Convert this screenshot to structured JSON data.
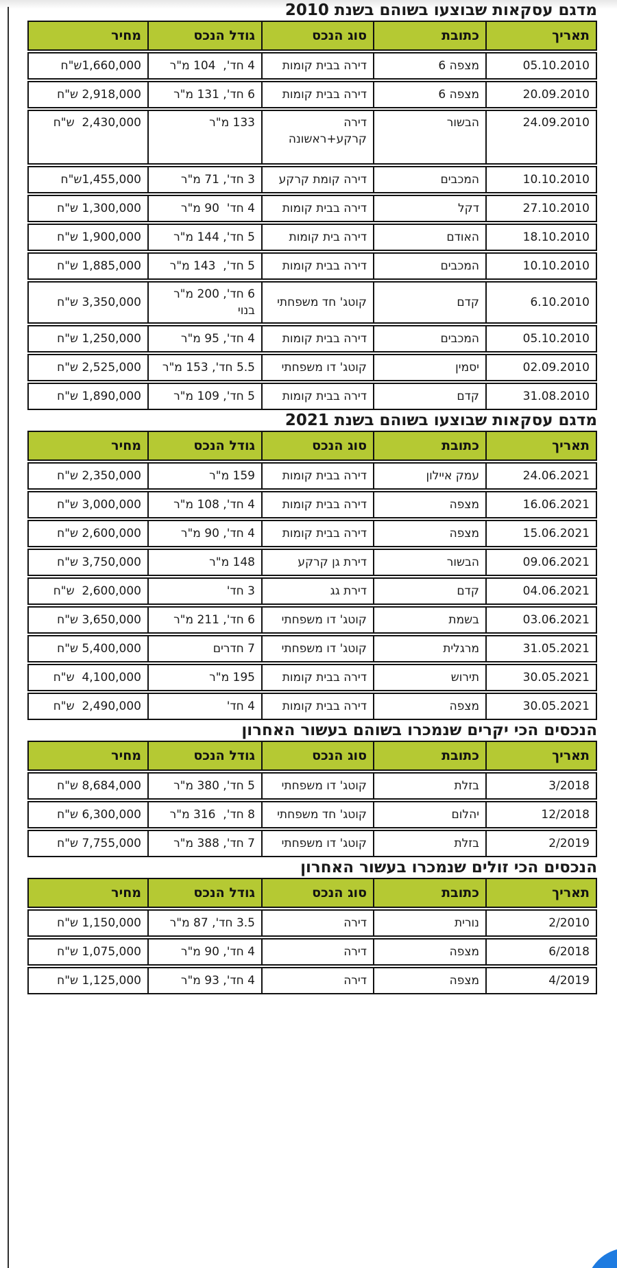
{
  "colors": {
    "header_bg": "#b5c933",
    "border": "#111111",
    "circle_blue": "#1e7be0"
  },
  "tables": [
    {
      "title": "מדגם עסקאות שבוצעו בשוהם בשנת 2010",
      "headers": [
        "תאריך",
        "כתובת",
        "סוג הנכס",
        "גודל הנכס",
        "מחיר"
      ],
      "rows": [
        [
          "05.10.2010",
          "מצפה 6",
          "דירה בבית קומות",
          "4 חד',  104 מ\"ר",
          "1,660,000ש\"ח"
        ],
        [
          "20.09.2010",
          "מצפה 6",
          "דירה בבית קומות",
          "6 חד', 131 מ\"ר",
          "2,918,000 ש\"ח"
        ],
        [
          "24.09.2010",
          "הבשור",
          "דירה\nקרקע+ראשונה",
          "133 מ\"ר",
          "2,430,000  ש\"ח"
        ],
        [
          "10.10.2010",
          "המכבים",
          "דירה קומת קרקע",
          "3 חד', 71 מ\"ר",
          "1,455,000ש\"ח"
        ],
        [
          "27.10.2010",
          "דקל",
          "דירה בבית קומות",
          "4 חד'  90 מ\"ר",
          "1,300,000 ש\"ח"
        ],
        [
          "18.10.2010",
          "האודם",
          "דירה בית קומות",
          "5 חד', 144 מ\"ר",
          "1,900,000 ש\"ח"
        ],
        [
          "10.10.2010",
          "המכבים",
          "דירה בבית קומות",
          "5 חד',  143 מ\"ר",
          "1,885,000 ש\"ח"
        ],
        [
          "6.10.2010",
          "קדם",
          "קוטג' חד משפחתי",
          "6 חד', 200 מ\"ר בנוי",
          "3,350,000 ש\"ח"
        ],
        [
          "05.10.2010",
          "המכבים",
          "דירה בבית קומות",
          "4 חד', 95 מ\"ר",
          "1,250,000 ש\"ח"
        ],
        [
          "02.09.2010",
          "יסמין",
          "קוטג' דו משפחתי",
          "5.5 חד', 153 מ\"ר",
          "2,525,000 ש\"ח"
        ],
        [
          "31.08.2010",
          "קדם",
          "דירה בבית קומות",
          "5 חד', 109 מ\"ר",
          "1,890,000 ש\"ח"
        ]
      ]
    },
    {
      "title": "מדגם עסקאות שבוצעו בשוהם בשנת 2021",
      "headers": [
        "תאריך",
        "כתובת",
        "סוג הנכס",
        "גודל הנכס",
        "מחיר"
      ],
      "rows": [
        [
          "24.06.2021",
          "עמק איילון",
          "דירה בבית קומות",
          "159 מ\"ר",
          "2,350,000 ש\"ח"
        ],
        [
          "16.06.2021",
          "מצפה",
          "דירה בבית קומות",
          "4 חד', 108 מ\"ר",
          "3,000,000 ש\"ח"
        ],
        [
          "15.06.2021",
          "מצפה",
          "דירה בבית קומות",
          "4 חד', 90 מ\"ר",
          "2,600,000 ש\"ח"
        ],
        [
          "09.06.2021",
          "הבשור",
          "דירת גן קרקע",
          "148 מ\"ר",
          "3,750,000 ש\"ח"
        ],
        [
          "04.06.2021",
          "קדם",
          "דירת גג",
          "3 חד'",
          "2,600,000  ש\"ח"
        ],
        [
          "03.06.2021",
          "בשמת",
          "קוטג' דו משפחתי",
          "6 חד', 211 מ\"ר",
          "3,650,000 ש\"ח"
        ],
        [
          "31.05.2021",
          "מרגלית",
          "קוטג' דו משפחתי",
          "7 חדרים",
          "5,400,000 ש\"ח"
        ],
        [
          "30.05.2021",
          "תירוש",
          "דירה בבית קומות",
          "195 מ\"ר",
          "4,100,000  ש\"ח"
        ],
        [
          "30.05.2021",
          "מצפה",
          "דירה בבית קומות",
          "4 חד'",
          "2,490,000  ש\"ח"
        ]
      ]
    },
    {
      "title": "הנכסים הכי יקרים שנמכרו בשוהם בעשור האחרון",
      "headers": [
        "תאריך",
        "כתובת",
        "סוג הנכס",
        "גודל הנכס",
        "מחיר"
      ],
      "rows": [
        [
          "3/2018",
          "בזלת",
          "קוטג' דו משפחתי",
          "5 חד', 380 מ\"ר",
          "8,684,000 ש\"ח"
        ],
        [
          "12/2018",
          "יהלום",
          "קוטג' חד משפחתי",
          "8 חד',  316 מ\"ר",
          "6,300,000 ש\"ח"
        ],
        [
          "2/2019",
          "בזלת",
          "קוטג' דו משפחתי",
          "7 חד', 388 מ\"ר",
          "7,755,000 ש\"ח"
        ]
      ]
    },
    {
      "title": "הנכסים הכי זולים שנמכרו בעשור האחרון",
      "headers": [
        "תאריך",
        "כתובת",
        "סוג הנכס",
        "גודל הנכס",
        "מחיר"
      ],
      "rows": [
        [
          "2/2010",
          "נורית",
          "דירה",
          "3.5 חד', 87 מ\"ר",
          "1,150,000 ש\"ח"
        ],
        [
          "6/2018",
          "מצפה",
          "דירה",
          "4 חד', 90 מ\"ר",
          "1,075,000 ש\"ח"
        ],
        [
          "4/2019",
          "מצפה",
          "דירה",
          "4 חד', 93 מ\"ר",
          "1,125,000 ש\"ח"
        ]
      ]
    }
  ]
}
